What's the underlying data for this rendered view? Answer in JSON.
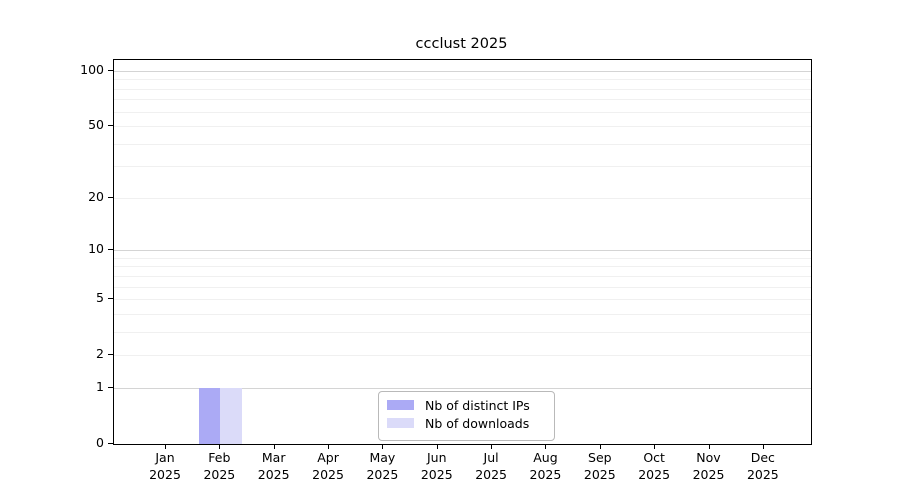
{
  "chart_data": {
    "type": "bar",
    "title": "ccclust 2025",
    "categories": [
      "Jan 2025",
      "Feb 2025",
      "Mar 2025",
      "Apr 2025",
      "May 2025",
      "Jun 2025",
      "Jul 2025",
      "Aug 2025",
      "Sep 2025",
      "Oct 2025",
      "Nov 2025",
      "Dec 2025"
    ],
    "series": [
      {
        "name": "Nb of distinct IPs",
        "color": "#abaaf5",
        "values": [
          0,
          1,
          0,
          0,
          0,
          0,
          0,
          0,
          0,
          0,
          0,
          0
        ]
      },
      {
        "name": "Nb of downloads",
        "color": "#dbdbf9",
        "values": [
          0,
          1,
          0,
          0,
          0,
          0,
          0,
          0,
          0,
          0,
          0,
          0
        ]
      }
    ],
    "xlabel": "",
    "ylabel": "",
    "yticks": [
      0,
      1,
      2,
      5,
      10,
      20,
      50,
      100
    ],
    "minor_grid_values": [
      2,
      3,
      4,
      5,
      6,
      7,
      8,
      9,
      20,
      30,
      40,
      50,
      60,
      70,
      80,
      90
    ],
    "major_grid_values": [
      1,
      10,
      100
    ],
    "yscale": "symlog (log(1+x))",
    "ylim": [
      0,
      115
    ],
    "grid": "horizontal major+minor",
    "legend_position": "inside bottom-center"
  }
}
